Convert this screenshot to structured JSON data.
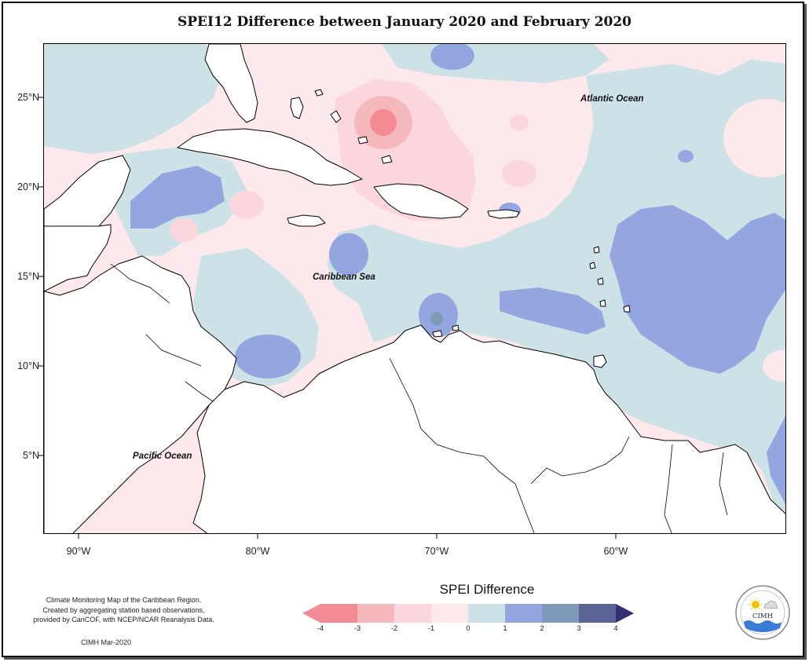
{
  "title": "SPEI12 Difference between January 2020 and February 2020",
  "map": {
    "ocean_labels": [
      {
        "name": "atlantic",
        "text": "Atlantic Ocean"
      },
      {
        "name": "caribbean",
        "text": "Caribbean Sea"
      },
      {
        "name": "pacific",
        "text": "Pacific Ocean"
      }
    ],
    "lat_ticks": [
      "25°N",
      "20°N",
      "15°N",
      "10°N",
      "5°N"
    ],
    "lon_ticks": [
      "90°W",
      "80°W",
      "70°W",
      "60°W"
    ],
    "extent": {
      "lon_min": -92,
      "lon_max": -50.5,
      "lat_min": 1.8,
      "lat_max": 28.2
    }
  },
  "legend": {
    "title": "SPEI Difference",
    "ticks": [
      "-4",
      "-3",
      "-2",
      "-1",
      "0",
      "1",
      "2",
      "3",
      "4"
    ],
    "colors": [
      "#f28b93",
      "#f5b8bc",
      "#fbd6dd",
      "#fde8ec",
      "#cde2e6",
      "#94a6e0",
      "#7e9ab8",
      "#5a6394",
      "#332f70"
    ]
  },
  "credits": {
    "line1": "Climate Monitoring Map of the Caribbean Region.",
    "line2": "Created by aggregating station based observations,",
    "line3": "provided by CariCOF, with NCEP/NCAR Reanalysis Data.",
    "date": "CIMH Mar-2020"
  },
  "logo": {
    "text": "CIMH"
  }
}
